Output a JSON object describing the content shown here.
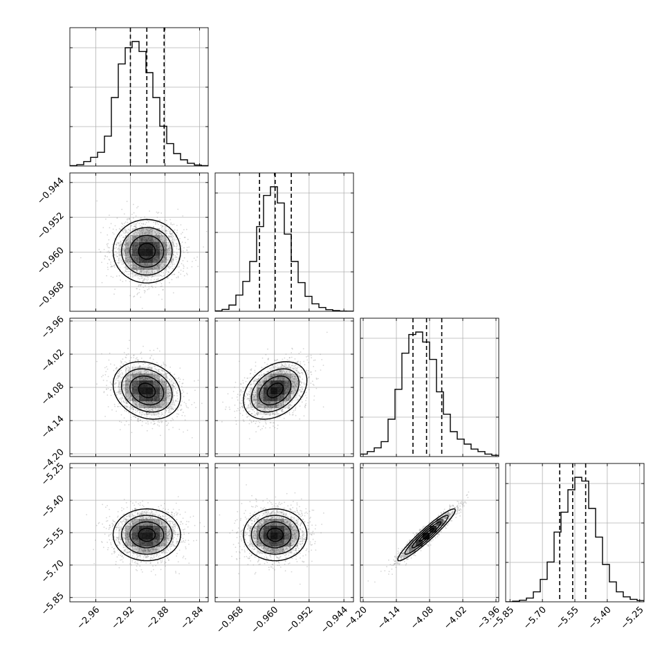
{
  "chart_data": {
    "type": "corner",
    "grid": true,
    "colors": {
      "hist": "#000000",
      "contour": "#000000",
      "density": "#000000",
      "scatter": "#888888",
      "grid": "#b0b0b0"
    },
    "parameters": [
      {
        "range": [
          -2.99,
          -2.83
        ],
        "ticks": [
          -2.96,
          -2.92,
          -2.88,
          -2.84
        ],
        "tick_labels": [
          "−2.96",
          "−2.92",
          "−2.88",
          "−2.84"
        ]
      },
      {
        "range": [
          -0.9736,
          -0.9418
        ],
        "ticks": [
          -0.968,
          -0.96,
          -0.952,
          -0.944
        ],
        "tick_labels": [
          "−0.968",
          "−0.960",
          "−0.952",
          "−0.944"
        ]
      },
      {
        "range": [
          -4.205,
          -3.955
        ],
        "ticks": [
          -4.2,
          -4.14,
          -4.08,
          -4.02,
          -3.96
        ],
        "tick_labels": [
          "−4.20",
          "−4.14",
          "−4.08",
          "−4.02",
          "−3.96"
        ]
      },
      {
        "range": [
          -5.87,
          -5.23
        ],
        "ticks": [
          -5.85,
          -5.7,
          -5.55,
          -5.4,
          -5.25
        ],
        "tick_labels": [
          "−5.85",
          "−5.70",
          "−5.55",
          "−5.40",
          "−5.25"
        ]
      }
    ],
    "quantiles": [
      [
        -2.92,
        -2.901,
        -2.881
      ],
      [
        -0.9634,
        -0.9598,
        -0.9561
      ],
      [
        -4.11,
        -4.0855,
        -4.058
      ],
      [
        -5.62,
        -5.56,
        -5.5
      ]
    ],
    "histograms": [
      [
        0.003,
        0.011,
        0.036,
        0.07,
        0.11,
        0.24,
        0.55,
        0.82,
        0.95,
        1.0,
        0.92,
        0.75,
        0.55,
        0.32,
        0.18,
        0.1,
        0.05,
        0.022,
        0.008,
        0.003
      ],
      [
        0.003,
        0.015,
        0.05,
        0.13,
        0.24,
        0.4,
        0.68,
        0.93,
        1.0,
        0.87,
        0.62,
        0.4,
        0.23,
        0.12,
        0.06,
        0.03,
        0.013,
        0.006,
        0.002,
        0.001
      ],
      [
        0.02,
        0.04,
        0.07,
        0.12,
        0.3,
        0.54,
        0.83,
        0.98,
        1.0,
        0.92,
        0.78,
        0.52,
        0.34,
        0.2,
        0.14,
        0.1,
        0.06,
        0.04,
        0.02,
        0.01
      ],
      [
        0.0,
        0.005,
        0.013,
        0.03,
        0.08,
        0.18,
        0.32,
        0.56,
        0.72,
        0.9,
        1.0,
        0.97,
        0.75,
        0.52,
        0.3,
        0.16,
        0.08,
        0.04,
        0.02,
        0.01
      ]
    ],
    "correlations": {
      "1-0": 0.0,
      "2-0": -0.2,
      "3-0": 0.0,
      "2-1": 0.35,
      "3-1": 0.0,
      "3-2": 0.95
    }
  }
}
